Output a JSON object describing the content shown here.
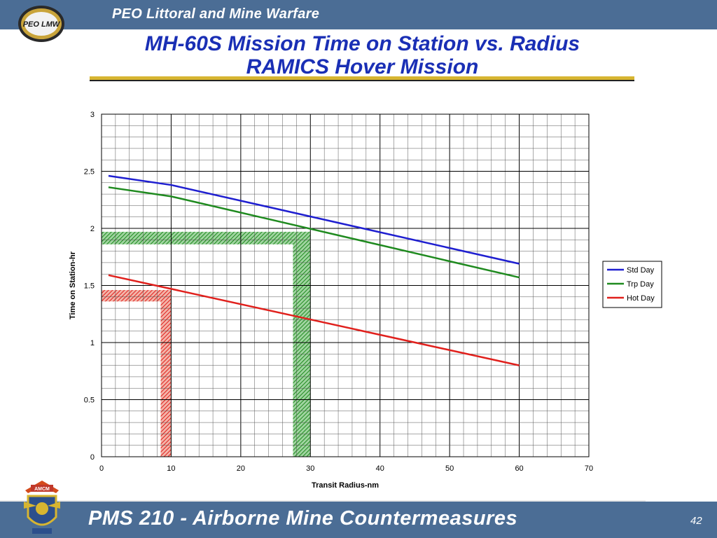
{
  "header": {
    "org_title": "PEO Littoral and Mine Warfare",
    "logo_text": "PEO LMW"
  },
  "slide": {
    "title_line1": "MH-60S Mission Time on Station vs. Radius",
    "title_line2": "RAMICS Hover Mission",
    "page_number": "42"
  },
  "footer": {
    "program_title": "PMS 210 - Airborne Mine Countermeasures",
    "logo_text": "AMCM"
  },
  "colors": {
    "brand_bar": "#4b6d95",
    "title_text": "#1a2fb5",
    "title_rule": "#d7b531",
    "std_day": "#1f1fd0",
    "trp_day": "#1f8a1f",
    "hot_day": "#e0201c"
  },
  "chart_data": {
    "type": "line",
    "title": "",
    "xlabel": "Transit Radius-nm",
    "ylabel": "Time on Station-hr",
    "xlim": [
      0,
      70
    ],
    "ylim": [
      0,
      3
    ],
    "xticks": [
      "0",
      "10",
      "20",
      "30",
      "40",
      "50",
      "60",
      "70"
    ],
    "yticks": [
      "0",
      "0.5",
      "1",
      "1.5",
      "2",
      "2.5",
      "3"
    ],
    "grid": true,
    "legend_position": "right",
    "series": [
      {
        "name": "Std Day",
        "color": "#1f1fd0",
        "x": [
          1,
          10,
          60
        ],
        "y": [
          2.46,
          2.38,
          1.69
        ]
      },
      {
        "name": "Trp Day",
        "color": "#1f8a1f",
        "x": [
          1,
          10,
          60
        ],
        "y": [
          2.36,
          2.28,
          1.57
        ]
      },
      {
        "name": "Hot Day",
        "color": "#e0201c",
        "x": [
          1,
          10,
          60
        ],
        "y": [
          1.59,
          1.47,
          0.8
        ]
      }
    ],
    "highlight_bands": [
      {
        "color": "#1f8a1f",
        "x_range": [
          27.5,
          30
        ],
        "y_range": [
          1.86,
          1.97
        ]
      },
      {
        "color": "#e0201c",
        "x_range": [
          8.5,
          10
        ],
        "y_range": [
          1.36,
          1.46
        ]
      }
    ]
  }
}
